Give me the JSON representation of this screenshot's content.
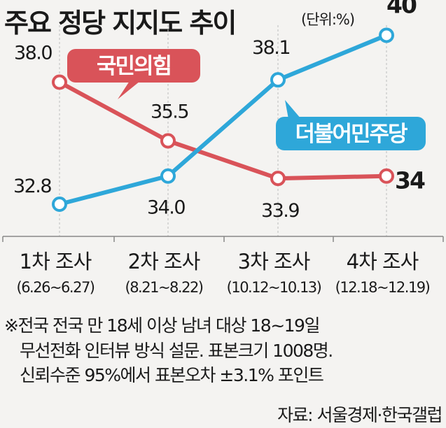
{
  "header": {
    "title": "주요 정당 지지도 추이",
    "unit": "(단위:%)"
  },
  "colors": {
    "ppp": "#d95359",
    "dpk": "#2ea7d9",
    "axis": "#888888",
    "grid": "#bdbdbd"
  },
  "chart_data": {
    "type": "line",
    "categories": [
      "1차 조사",
      "2차 조사",
      "3차 조사",
      "4차 조사"
    ],
    "category_dates": [
      "(6.26~6.27)",
      "(8.21~8.22)",
      "(10.12~10.13)",
      "(12.18~12.19)"
    ],
    "series": [
      {
        "name": "국민의힘",
        "values": [
          38.0,
          35.5,
          33.9,
          34
        ],
        "labels": [
          "38.0",
          "35.5",
          "33.9",
          "34"
        ]
      },
      {
        "name": "더불어민주당",
        "values": [
          32.8,
          34.0,
          38.1,
          40
        ],
        "labels": [
          "32.8",
          "34.0",
          "38.1",
          "40"
        ]
      }
    ],
    "legend": "inline callouts"
  },
  "notes": [
    "※전국 전국 만 18세 이상 남녀 대상 18~19일",
    "무선전화 인터뷰 방식 설문. 표본크기 1008명.",
    "신뢰수준 95%에서 표본오차 ±3.1% 포인트"
  ],
  "source": "자료: 서울경제·한국갤럽"
}
